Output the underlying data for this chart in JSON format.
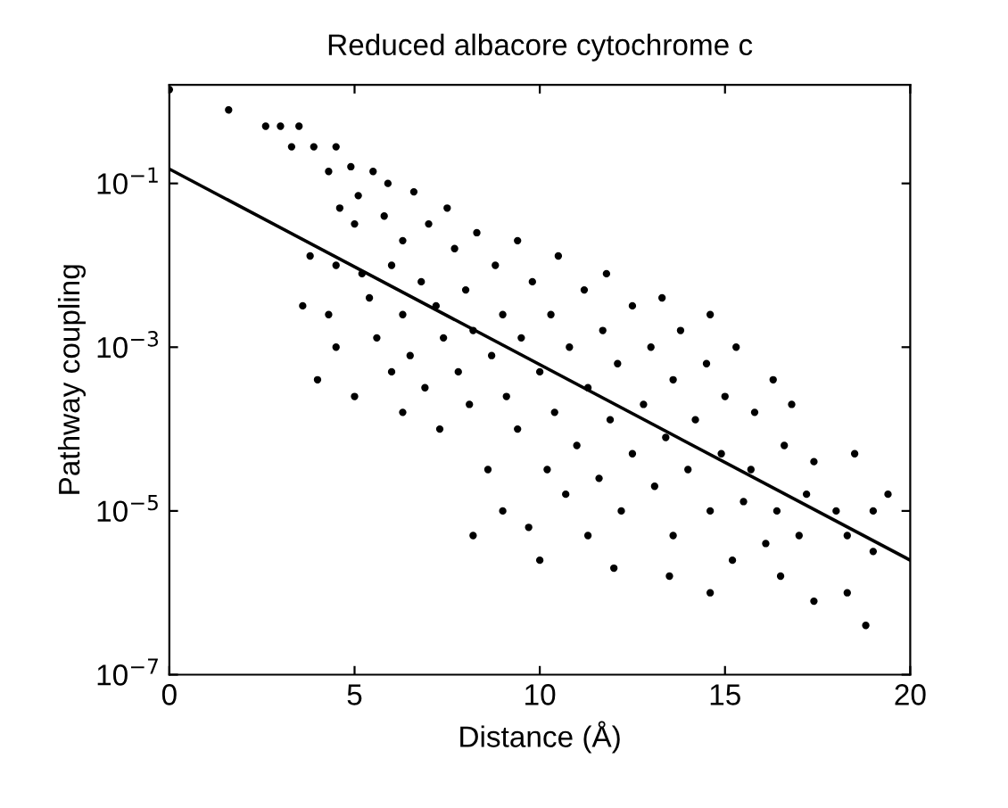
{
  "chart_data": {
    "type": "scatter",
    "title": "Reduced albacore cytochrome c",
    "xlabel": "Distance (Å)",
    "ylabel": "Pathway coupling",
    "log": "y",
    "xlim": [
      0,
      20
    ],
    "xticks": [
      0,
      5,
      10,
      15,
      20
    ],
    "ylim": [
      1e-07,
      1.6
    ],
    "yticks": [
      {
        "value": 0.1,
        "label": "10$^{−1}$"
      },
      {
        "value": 0.001,
        "label": "10$^{−3}$"
      },
      {
        "value": 1e-05,
        "label": "10$^{−5}$"
      },
      {
        "value": 1e-07,
        "label": "10$^{−7}$"
      }
    ],
    "grid": false,
    "marker": "circle",
    "series": [
      {
        "color": "#000000",
        "x": [
          0,
          1.6,
          2.6,
          3.0,
          3.5,
          3.3,
          3.9,
          4.5,
          4.3,
          4.9,
          5.5,
          4.6,
          5.1,
          5.9,
          6.6,
          7.5,
          5.0,
          5.8,
          6.3,
          7.0,
          3.8,
          4.5,
          5.2,
          6.0,
          6.8,
          7.7,
          8.3,
          3.6,
          4.3,
          5.4,
          6.3,
          7.2,
          8.0,
          8.8,
          9.4,
          4.5,
          5.6,
          6.5,
          7.4,
          8.2,
          9.0,
          9.8,
          10.5,
          4.0,
          5.0,
          6.0,
          6.9,
          7.8,
          8.7,
          9.5,
          10.3,
          11.2,
          11.8,
          6.3,
          7.3,
          8.1,
          9.1,
          10.0,
          10.8,
          11.7,
          12.5,
          13.3,
          8.6,
          9.4,
          10.4,
          11.3,
          12.1,
          13.0,
          13.8,
          14.6,
          9.0,
          10.2,
          11.0,
          11.9,
          12.8,
          13.6,
          14.5,
          15.3,
          16.3,
          8.2,
          9.7,
          10.7,
          11.6,
          12.5,
          13.4,
          14.2,
          15.0,
          15.8,
          16.8,
          10.0,
          11.3,
          12.2,
          13.1,
          14.0,
          14.9,
          15.7,
          16.6,
          17.4,
          18.5,
          12.0,
          13.6,
          14.6,
          15.5,
          16.4,
          17.2,
          18.0,
          19.0,
          19.4,
          13.5,
          15.2,
          16.1,
          17.0,
          18.3,
          19.0,
          14.6,
          16.5,
          17.4,
          18.3,
          18.8
        ],
        "values": [
          1.4,
          0.79,
          0.5,
          0.5,
          0.5,
          0.28,
          0.28,
          0.28,
          0.14,
          0.16,
          0.14,
          0.05,
          0.071,
          0.1,
          0.079,
          0.05,
          0.032,
          0.04,
          0.02,
          0.032,
          0.013,
          0.01,
          0.0079,
          0.01,
          0.0063,
          0.016,
          0.025,
          0.0032,
          0.0025,
          0.004,
          0.0025,
          0.0032,
          0.005,
          0.01,
          0.02,
          0.001,
          0.0013,
          0.00079,
          0.0013,
          0.0016,
          0.0025,
          0.0063,
          0.013,
          0.0004,
          0.00025,
          0.0005,
          0.00032,
          0.0005,
          0.00079,
          0.0013,
          0.0025,
          0.005,
          0.0079,
          0.00016,
          0.0001,
          0.0002,
          0.00025,
          0.0005,
          0.001,
          0.0016,
          0.0032,
          0.004,
          3.2e-05,
          0.0001,
          0.00016,
          0.00032,
          0.00063,
          0.001,
          0.0016,
          0.0025,
          1e-05,
          3.2e-05,
          6.3e-05,
          0.00013,
          0.0002,
          0.0004,
          0.00063,
          0.001,
          0.0004,
          5e-06,
          6.3e-06,
          1.6e-05,
          2.5e-05,
          5e-05,
          7.9e-05,
          0.00013,
          0.00025,
          0.00016,
          0.0002,
          2.5e-06,
          5e-06,
          1e-05,
          2e-05,
          3.2e-05,
          5e-05,
          3.2e-05,
          6.3e-05,
          4e-05,
          5e-05,
          2e-06,
          5e-06,
          1e-05,
          1.3e-05,
          1e-05,
          1.6e-05,
          1e-05,
          1e-05,
          1.6e-05,
          1.6e-06,
          2.5e-06,
          4e-06,
          5e-06,
          5e-06,
          3.2e-06,
          1e-06,
          1.6e-06,
          7.9e-07,
          1e-06,
          4e-07
        ]
      },
      {
        "type": "line",
        "color": "#000000",
        "marker": "none",
        "line_style": "solid",
        "x": [
          0,
          20
        ],
        "values": [
          0.15,
          2.5e-06
        ]
      }
    ]
  }
}
